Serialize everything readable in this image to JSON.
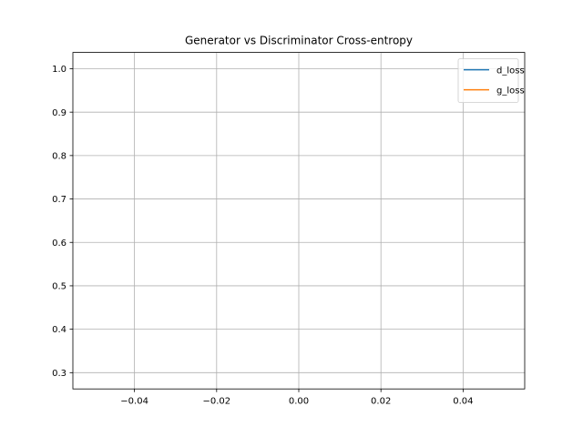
{
  "chart_data": {
    "type": "line",
    "title": "Generator vs Discriminator Cross-entropy",
    "xlabel": "",
    "ylabel": "",
    "xlim": [
      -0.055,
      0.055
    ],
    "ylim": [
      0.2625,
      1.0375
    ],
    "xticks": [
      -0.04,
      -0.02,
      0.0,
      0.02,
      0.04
    ],
    "xtick_labels": [
      "−0.04",
      "−0.02",
      "0.00",
      "0.02",
      "0.04"
    ],
    "yticks": [
      0.3,
      0.4,
      0.5,
      0.6,
      0.7,
      0.8,
      0.9,
      1.0
    ],
    "ytick_labels": [
      "0.3",
      "0.4",
      "0.5",
      "0.6",
      "0.7",
      "0.8",
      "0.9",
      "1.0"
    ],
    "grid": true,
    "legend_position": "top-right",
    "series": [
      {
        "name": "d_loss",
        "color": "#1f77b4",
        "x": [],
        "y": []
      },
      {
        "name": "g_loss",
        "color": "#ff7f0e",
        "x": [],
        "y": []
      }
    ],
    "grid_color": "#b0b0b0"
  }
}
